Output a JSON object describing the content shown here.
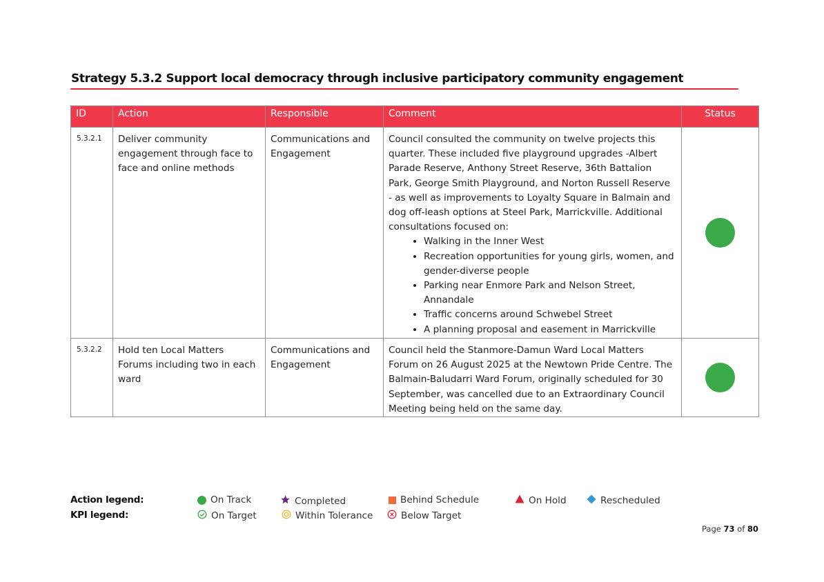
{
  "heading": "Strategy 5.3.2 Support local democracy through inclusive participatory community engagement",
  "table": {
    "headers": {
      "id": "ID",
      "action": "Action",
      "responsible": "Responsible",
      "comment": "Comment",
      "status": "Status"
    },
    "rows": [
      {
        "id": "5.3.2.1",
        "action": "Deliver community engagement through face to face and online methods",
        "responsible": "Communications and Engagement",
        "comment": "Council consulted the community on twelve projects this quarter. These included five playground upgrades -Albert Parade Reserve, Anthony Street Reserve, 36th Battalion Park, George Smith Playground, and Norton Russell Reserve - as well as improvements to Loyalty Square in Balmain and dog off-leash options at Steel Park, Marrickville. Additional consultations focused on:",
        "bullets": [
          "Walking in the Inner West",
          "Recreation opportunities for young girls, women, and gender-diverse people",
          "Parking near Enmore Park and Nelson Street, Annandale",
          "Traffic concerns around Schwebel Street",
          "A planning proposal and easement in Marrickville"
        ],
        "status": "On Track"
      },
      {
        "id": "5.3.2.2",
        "action": "Hold ten Local Matters Forums including two in each ward",
        "responsible": "Communications and Engagement",
        "comment": "Council held the Stanmore-Damun Ward Local Matters Forum on 26 August 2025 at the Newtown Pride Centre. The Balmain-Baludarri Ward Forum, originally scheduled for 30 September, was cancelled due to an Extraordinary Council Meeting being held on the same day.",
        "status": "On Track"
      }
    ]
  },
  "legend": {
    "action_label": "Action legend:",
    "kpi_label": "KPI legend:",
    "action_items": [
      {
        "label": "On Track",
        "icon": "green-circle-icon",
        "color": "#3aaa48"
      },
      {
        "label": "Completed",
        "icon": "purple-star-icon",
        "color": "#6b2c7e"
      },
      {
        "label": "Behind Schedule",
        "icon": "orange-square-icon",
        "color": "#f26a3b"
      },
      {
        "label": "On Hold",
        "icon": "red-triangle-icon",
        "color": "#d7263a"
      },
      {
        "label": "Rescheduled",
        "icon": "blue-diamond-icon",
        "color": "#2f9ad6"
      }
    ],
    "kpi_items": [
      {
        "label": "On Target",
        "icon": "green-check-circle-icon",
        "color": "#3aaa48"
      },
      {
        "label": "Within Tolerance",
        "icon": "yellow-ring-icon",
        "color": "#f2b63a"
      },
      {
        "label": "Below Target",
        "icon": "red-x-circle-icon",
        "color": "#d7263a"
      }
    ]
  },
  "page": {
    "prefix": "Page",
    "current": "73",
    "of": "of",
    "total": "80"
  },
  "colors": {
    "header_red": "#f03a4c",
    "accent_red": "#e8273a",
    "status_green": "#3aaa48"
  }
}
